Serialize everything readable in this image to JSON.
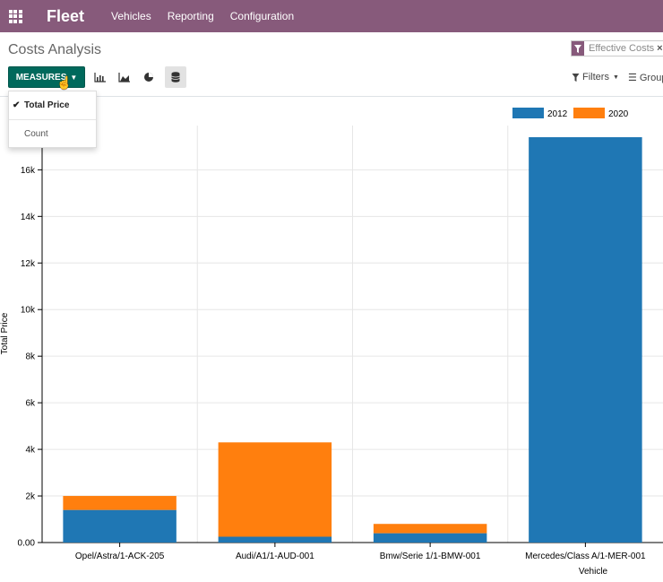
{
  "topbar": {
    "app_name": "Fleet",
    "menu": [
      "Vehicles",
      "Reporting",
      "Configuration"
    ]
  },
  "control_panel": {
    "title": "Costs Analysis",
    "facet_label": "Effective Costs",
    "measures_label": "MEASURES",
    "filters_label": "Filters",
    "group_label": "Group"
  },
  "measures_menu": {
    "items": [
      {
        "label": "Total Price",
        "checked": true
      },
      {
        "label": "Count",
        "checked": false
      }
    ]
  },
  "colors": {
    "brand": "#875a7b",
    "primary_button": "#00695c",
    "series_2012": "#1f77b4",
    "series_2020": "#ff7f0e"
  },
  "chart_data": {
    "type": "bar",
    "stacked": true,
    "categories": [
      "Opel/Astra/1-ACK-205",
      "Audi/A1/1-AUD-001",
      "Bmw/Serie 1/1-BMW-001",
      "Mercedes/Class A/1-MER-001"
    ],
    "series": [
      {
        "name": "2012",
        "color": "#1f77b4",
        "values": [
          1400,
          250,
          400,
          17400
        ]
      },
      {
        "name": "2020",
        "color": "#ff7f0e",
        "values": [
          600,
          4050,
          400,
          0
        ]
      }
    ],
    "xlabel": "Vehicle",
    "ylabel": "Total Price",
    "ylim": [
      0,
      17900
    ],
    "yticks": [
      0,
      2000,
      4000,
      6000,
      8000,
      10000,
      12000,
      14000,
      16000
    ],
    "ytick_labels": [
      "0.00",
      "2k",
      "4k",
      "6k",
      "8k",
      "10k",
      "12k",
      "14k",
      "16k"
    ],
    "legend_position": "top-right",
    "grid": true
  }
}
